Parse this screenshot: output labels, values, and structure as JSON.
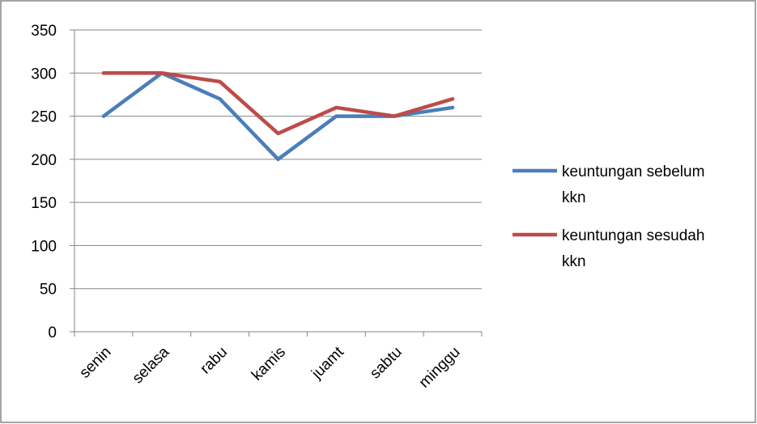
{
  "chart_data": {
    "type": "line",
    "categories": [
      "senin",
      "selasa",
      "rabu",
      "kamis",
      "juamt",
      "sabtu",
      "minggu"
    ],
    "series": [
      {
        "name": "keuntungan sebelum kkn",
        "legend_lines": [
          "keuntungan sebelum",
          "kkn"
        ],
        "color": "#4a7ebb",
        "values": [
          250,
          300,
          270,
          200,
          250,
          250,
          260
        ]
      },
      {
        "name": "keuntungan sesudah kkn",
        "legend_lines": [
          "keuntungan sesudah",
          "kkn"
        ],
        "color": "#be4b48",
        "values": [
          300,
          300,
          290,
          230,
          260,
          250,
          270
        ]
      }
    ],
    "yticks": [
      "0",
      "50",
      "100",
      "150",
      "200",
      "250",
      "300",
      "350"
    ],
    "ylim": [
      0,
      350
    ],
    "grid": "horizontal",
    "legend_position": "right"
  }
}
